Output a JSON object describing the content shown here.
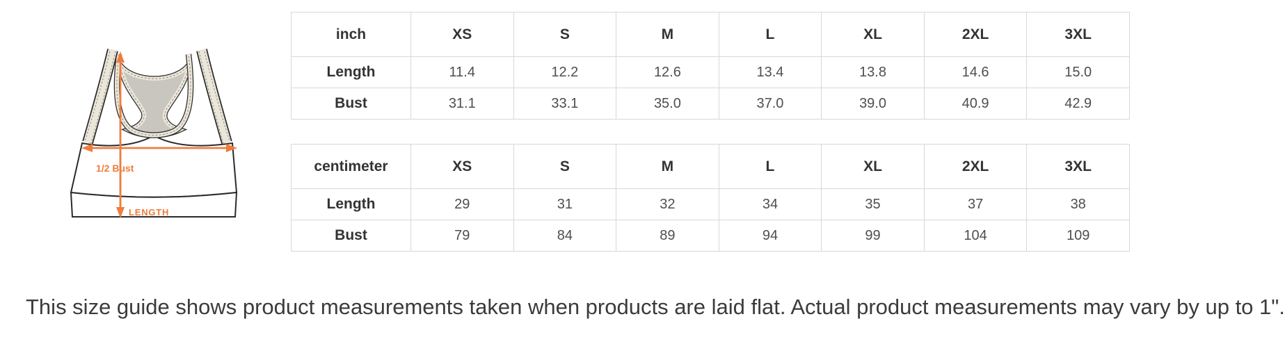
{
  "illustration": {
    "bust_label": "1/2 Bust",
    "length_label": "LENGTH",
    "accent_color": "#EF7C3C"
  },
  "tables": [
    {
      "unit": "inch",
      "sizes": [
        "XS",
        "S",
        "M",
        "L",
        "XL",
        "2XL",
        "3XL"
      ],
      "rows": [
        {
          "label": "Length",
          "values": [
            "11.4",
            "12.2",
            "12.6",
            "13.4",
            "13.8",
            "14.6",
            "15.0"
          ]
        },
        {
          "label": "Bust",
          "values": [
            "31.1",
            "33.1",
            "35.0",
            "37.0",
            "39.0",
            "40.9",
            "42.9"
          ]
        }
      ]
    },
    {
      "unit": "centimeter",
      "sizes": [
        "XS",
        "S",
        "M",
        "L",
        "XL",
        "2XL",
        "3XL"
      ],
      "rows": [
        {
          "label": "Length",
          "values": [
            "29",
            "31",
            "32",
            "34",
            "35",
            "37",
            "38"
          ]
        },
        {
          "label": "Bust",
          "values": [
            "79",
            "84",
            "89",
            "94",
            "99",
            "104",
            "109"
          ]
        }
      ]
    }
  ],
  "footer_note": "This size guide shows product measurements taken when products are laid flat. Actual product measurements may vary by up to 1\"."
}
